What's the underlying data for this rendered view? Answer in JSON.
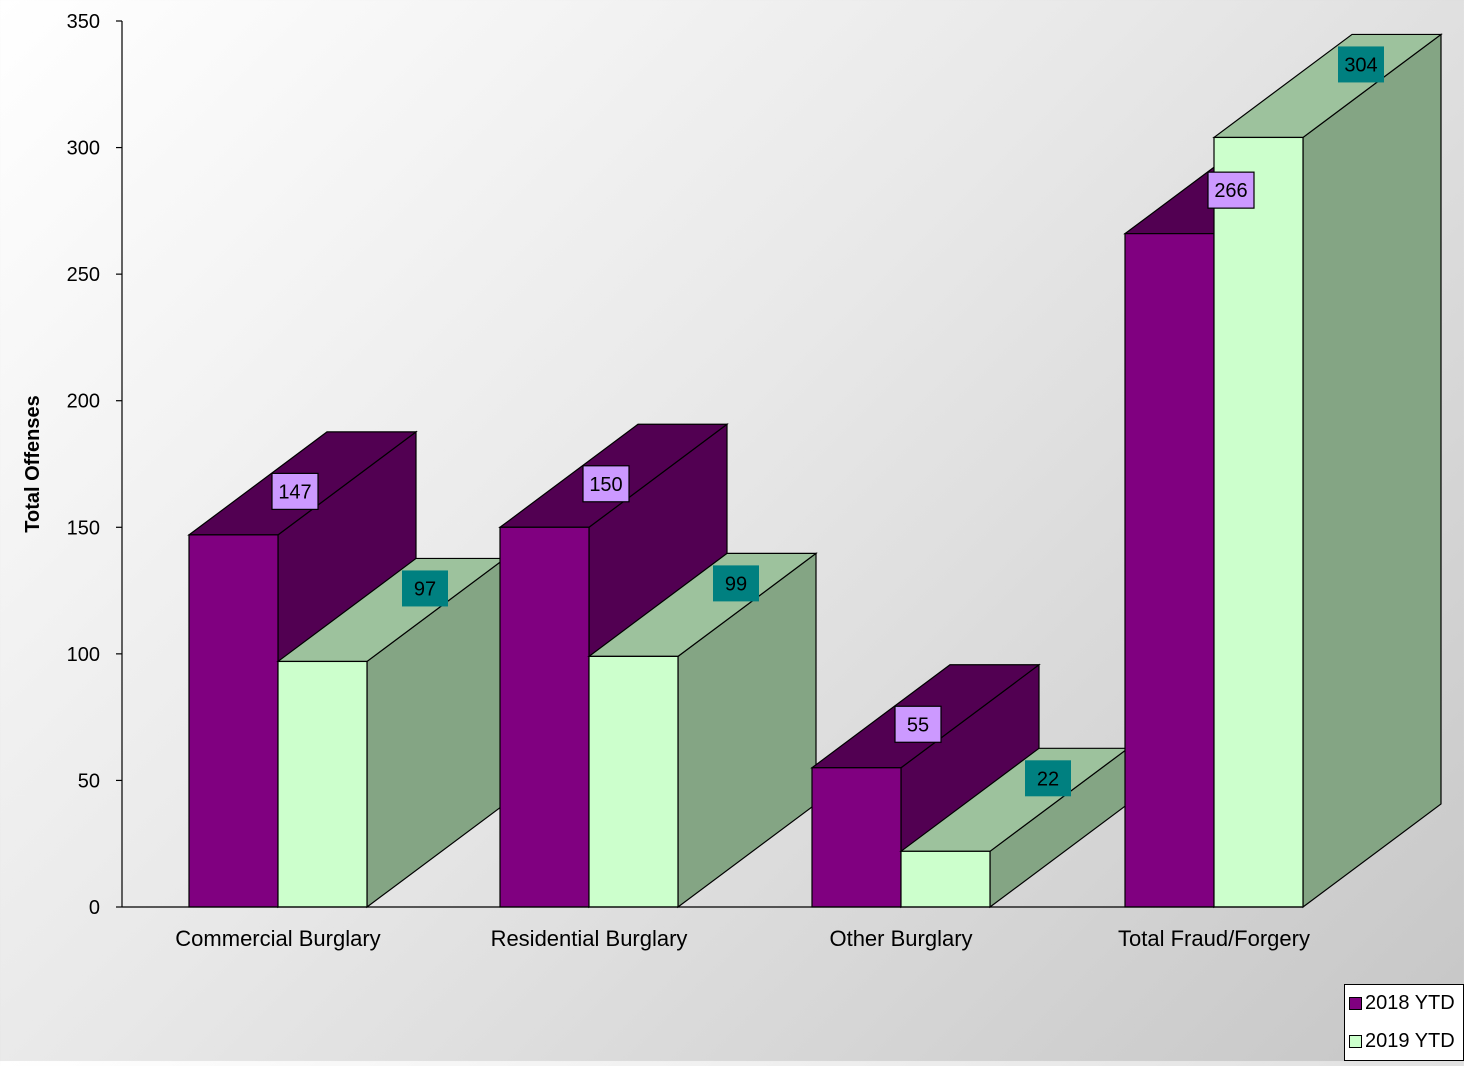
{
  "chart_data": {
    "type": "bar",
    "title": "",
    "xlabel": "",
    "ylabel": "Total Offenses",
    "ylim": [
      0,
      350
    ],
    "yticks": [
      0,
      50,
      100,
      150,
      200,
      250,
      300,
      350
    ],
    "grid": false,
    "legend_position": "bottom-right",
    "categories": [
      "Commercial Burglary",
      "Residential Burglary",
      "Other Burglary",
      "Total Fraud/Forgery"
    ],
    "series": [
      {
        "name": "2018 YTD",
        "values": [
          147,
          150,
          55,
          266
        ],
        "color": "#800080",
        "label_bg": "#CC99FF"
      },
      {
        "name": "2019 YTD",
        "values": [
          97,
          99,
          22,
          304
        ],
        "color": "#CCFFCC",
        "label_bg": "#008080"
      }
    ]
  }
}
